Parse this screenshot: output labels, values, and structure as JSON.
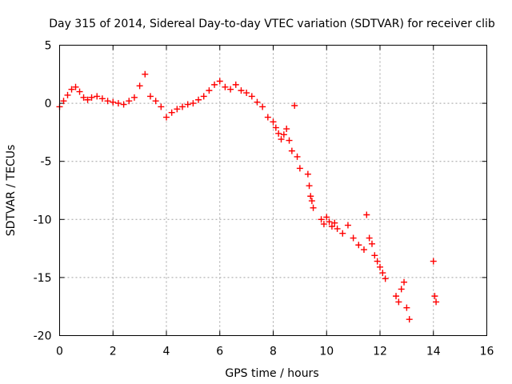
{
  "chart_data": {
    "type": "scatter",
    "title": "Day 315 of 2014, Sidereal Day-to-day VTEC variation (SDTVAR) for receiver clib",
    "xlabel": "GPS time / hours",
    "ylabel": "SDTVAR / TECUs",
    "xlim": [
      0,
      16
    ],
    "ylim": [
      -20,
      5
    ],
    "xticks": [
      0,
      2,
      4,
      6,
      8,
      10,
      12,
      14,
      16
    ],
    "yticks": [
      5,
      0,
      -5,
      -10,
      -15,
      -20
    ],
    "grid": true,
    "marker": "plus",
    "series": [
      {
        "name": "SDTVAR",
        "color": "#ff0000",
        "x": [
          0.0,
          0.15,
          0.3,
          0.45,
          0.6,
          0.75,
          0.9,
          1.05,
          1.2,
          1.4,
          1.6,
          1.8,
          2.0,
          2.2,
          2.4,
          2.6,
          2.8,
          3.0,
          3.2,
          3.4,
          3.6,
          3.8,
          4.0,
          4.2,
          4.4,
          4.6,
          4.8,
          5.0,
          5.2,
          5.4,
          5.6,
          5.8,
          6.0,
          6.2,
          6.4,
          6.6,
          6.8,
          7.0,
          7.2,
          7.4,
          7.6,
          7.8,
          8.0,
          8.1,
          8.2,
          8.3,
          8.4,
          8.5,
          8.6,
          8.7,
          8.8,
          8.9,
          9.0,
          9.3,
          9.35,
          9.4,
          9.45,
          9.5,
          9.8,
          9.9,
          10.0,
          10.1,
          10.2,
          10.3,
          10.4,
          10.6,
          10.8,
          11.0,
          11.2,
          11.4,
          11.5,
          11.6,
          11.7,
          11.8,
          11.9,
          12.0,
          12.1,
          12.2,
          12.6,
          12.7,
          12.8,
          12.9,
          13.0,
          13.1,
          14.0,
          14.05,
          14.1
        ],
        "y": [
          -0.3,
          0.2,
          0.7,
          1.2,
          1.4,
          1.0,
          0.5,
          0.3,
          0.5,
          0.6,
          0.4,
          0.2,
          0.1,
          0.0,
          -0.1,
          0.2,
          0.5,
          1.5,
          2.5,
          0.6,
          0.2,
          -0.3,
          -1.2,
          -0.8,
          -0.5,
          -0.3,
          -0.1,
          0.0,
          0.3,
          0.6,
          1.1,
          1.6,
          1.9,
          1.4,
          1.2,
          1.6,
          1.1,
          0.9,
          0.6,
          0.1,
          -0.3,
          -1.2,
          -1.6,
          -2.1,
          -2.6,
          -3.1,
          -2.7,
          -2.2,
          -3.2,
          -4.1,
          -0.2,
          -4.6,
          -5.6,
          -6.1,
          -7.1,
          -8.0,
          -8.4,
          -9.0,
          -10.0,
          -10.4,
          -9.8,
          -10.2,
          -10.6,
          -10.3,
          -10.8,
          -11.2,
          -10.5,
          -11.6,
          -12.2,
          -12.6,
          -9.6,
          -11.6,
          -12.1,
          -13.1,
          -13.6,
          -14.1,
          -14.6,
          -15.1,
          -16.6,
          -17.1,
          -16.0,
          -15.4,
          -17.6,
          -18.6,
          -13.6,
          -16.6,
          -17.1
        ]
      }
    ]
  }
}
